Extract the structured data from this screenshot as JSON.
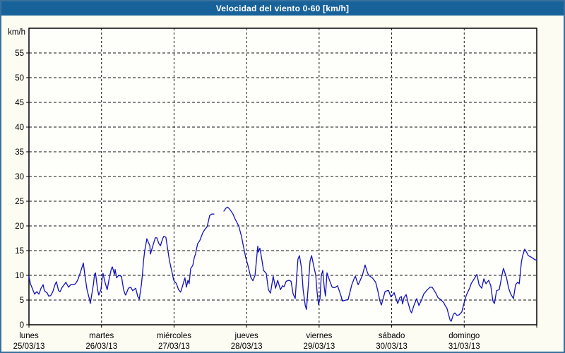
{
  "window": {
    "title": "Velocidad del viento 0-60 [km/h]"
  },
  "colors": {
    "titlebar_bg": "#18629a",
    "title_text": "#ffffff",
    "frame_border": "#39709d",
    "page_bg": "#fcfcf3",
    "plot_bg": "#fefefb",
    "grid": "#111111",
    "axis": "#000000",
    "line": "#1212bd"
  },
  "chart_data": {
    "type": "line",
    "title": "Velocidad del viento 0-60 [km/h]",
    "ylabel": "km/h",
    "xlabel": "",
    "ylim": [
      0,
      60
    ],
    "ytick_step": 5,
    "ytick_labels": [
      0,
      5,
      10,
      15,
      20,
      25,
      30,
      35,
      40,
      45,
      50,
      55
    ],
    "grid": "dashed",
    "legend_position": "none",
    "x_axis": {
      "hours_total": 168,
      "days": [
        {
          "name": "lunes",
          "date": "25/03/13"
        },
        {
          "name": "martes",
          "date": "26/03/13"
        },
        {
          "name": "miércoles",
          "date": "27/03/13"
        },
        {
          "name": "jueves",
          "date": "28/03/13"
        },
        {
          "name": "viernes",
          "date": "29/03/13"
        },
        {
          "name": "sábado",
          "date": "30/03/13"
        },
        {
          "name": "domingo",
          "date": "31/03/13"
        }
      ]
    },
    "series": [
      {
        "name": "Velocidad del viento",
        "unit": "km/h",
        "color": "#1212bd",
        "points": [
          [
            0,
            9.8
          ],
          [
            0.5,
            8.3
          ],
          [
            1.4,
            6.9
          ],
          [
            1.9,
            6.2
          ],
          [
            2.6,
            6.7
          ],
          [
            3.3,
            6.2
          ],
          [
            4,
            7.4
          ],
          [
            4.7,
            8.1
          ],
          [
            5.1,
            6.9
          ],
          [
            6.1,
            6.4
          ],
          [
            6.5,
            5.8
          ],
          [
            7.2,
            5.9
          ],
          [
            7.9,
            6.7
          ],
          [
            8.6,
            8.1
          ],
          [
            9.1,
            8.7
          ],
          [
            9.8,
            6.9
          ],
          [
            10.3,
            6.7
          ],
          [
            11,
            7.6
          ],
          [
            11.9,
            8.3
          ],
          [
            12.2,
            8.6
          ],
          [
            13.1,
            7.6
          ],
          [
            13.8,
            8.1
          ],
          [
            14.7,
            8.1
          ],
          [
            15.4,
            8.3
          ],
          [
            16.1,
            9
          ],
          [
            16.8,
            10.2
          ],
          [
            17.8,
            12.1
          ],
          [
            18,
            12.5
          ],
          [
            18.5,
            10
          ],
          [
            19.2,
            7.1
          ],
          [
            20.1,
            5
          ],
          [
            20.3,
            4.3
          ],
          [
            21.3,
            8.1
          ],
          [
            21.7,
            10.2
          ],
          [
            22,
            10.5
          ],
          [
            22.7,
            7.1
          ],
          [
            23.1,
            6
          ],
          [
            23.8,
            7.1
          ],
          [
            24.3,
            9.8
          ],
          [
            24.5,
            10.4
          ],
          [
            25,
            9
          ],
          [
            25.5,
            7.9
          ],
          [
            25.9,
            7.1
          ],
          [
            26.6,
            9.5
          ],
          [
            27.3,
            11.4
          ],
          [
            27.6,
            11.7
          ],
          [
            28.3,
            10.2
          ],
          [
            28.5,
            11.2
          ],
          [
            29,
            9.5
          ],
          [
            29.7,
            10
          ],
          [
            30.6,
            9.8
          ],
          [
            31.3,
            7.1
          ],
          [
            31.8,
            6.2
          ],
          [
            32,
            6
          ],
          [
            32.9,
            7.4
          ],
          [
            33.7,
            7.6
          ],
          [
            34.3,
            6.9
          ],
          [
            35.3,
            7.4
          ],
          [
            36,
            5.7
          ],
          [
            36.5,
            5.2
          ],
          [
            37.2,
            8.1
          ],
          [
            37.6,
            10.5
          ],
          [
            37.9,
            12.9
          ],
          [
            38.3,
            15
          ],
          [
            38.8,
            16.7
          ],
          [
            39,
            17.4
          ],
          [
            40,
            16
          ],
          [
            40.2,
            14.3
          ],
          [
            41.1,
            16.2
          ],
          [
            41.8,
            17.6
          ],
          [
            42.3,
            17.6
          ],
          [
            43,
            16.4
          ],
          [
            43.5,
            16
          ],
          [
            44.2,
            17.4
          ],
          [
            44.6,
            17.9
          ],
          [
            45.3,
            17.7
          ],
          [
            45.8,
            15.7
          ],
          [
            46.5,
            12.9
          ],
          [
            47.2,
            11
          ],
          [
            47.9,
            9
          ],
          [
            48.8,
            8.3
          ],
          [
            49.5,
            7.1
          ],
          [
            50.2,
            6.6
          ],
          [
            50.9,
            8
          ],
          [
            51.6,
            9.5
          ],
          [
            52.1,
            7.6
          ],
          [
            52.6,
            9
          ],
          [
            53,
            8.3
          ],
          [
            53.5,
            11.4
          ],
          [
            54.2,
            12
          ],
          [
            54.7,
            13.6
          ],
          [
            55.1,
            14.3
          ],
          [
            55.8,
            16.4
          ],
          [
            56.5,
            17
          ],
          [
            57.5,
            18.6
          ],
          [
            58.2,
            19.3
          ],
          [
            58.9,
            19.8
          ],
          [
            59.4,
            21
          ],
          [
            59.8,
            22.1
          ],
          [
            60.5,
            22.4
          ],
          [
            61.2,
            22.4
          ],
          [
            62.9,
            null
          ],
          [
            64.5,
            23
          ],
          [
            65.2,
            23.6
          ],
          [
            65.7,
            23.8
          ],
          [
            66.4,
            23.4
          ],
          [
            67.5,
            22.4
          ],
          [
            68.2,
            21.4
          ],
          [
            69.4,
            20
          ],
          [
            70.3,
            17.9
          ],
          [
            71,
            15.7
          ],
          [
            71.7,
            13.6
          ],
          [
            72.4,
            12.1
          ],
          [
            73.4,
            9.6
          ],
          [
            74.1,
            8.9
          ],
          [
            74.8,
            10
          ],
          [
            75.7,
            15.9
          ],
          [
            75.9,
            14.7
          ],
          [
            76.4,
            15.5
          ],
          [
            77.1,
            13
          ],
          [
            77.6,
            11
          ],
          [
            78.5,
            10.4
          ],
          [
            79.2,
            7.1
          ],
          [
            79.9,
            6.4
          ],
          [
            80.8,
            9.8
          ],
          [
            81.6,
            7.4
          ],
          [
            82.3,
            9
          ],
          [
            83.2,
            7.1
          ],
          [
            83.9,
            7.9
          ],
          [
            84.4,
            7.7
          ],
          [
            85.1,
            8.8
          ],
          [
            86,
            9
          ],
          [
            86.7,
            8.8
          ],
          [
            87.4,
            6.2
          ],
          [
            88.1,
            5.3
          ],
          [
            88.6,
            10
          ],
          [
            89,
            13.3
          ],
          [
            89.5,
            14
          ],
          [
            90.2,
            11.4
          ],
          [
            90.7,
            7.1
          ],
          [
            91.4,
            3.9
          ],
          [
            91.8,
            3.1
          ],
          [
            92.5,
            8.6
          ],
          [
            93,
            12.9
          ],
          [
            93.5,
            14
          ],
          [
            94.2,
            11.9
          ],
          [
            94.9,
            10
          ],
          [
            95.3,
            6.7
          ],
          [
            95.8,
            4.1
          ],
          [
            96.3,
            5.3
          ],
          [
            96.7,
            10
          ],
          [
            97.2,
            11
          ],
          [
            97.7,
            7.6
          ],
          [
            98.1,
            5.8
          ],
          [
            98.6,
            10.5
          ],
          [
            99.5,
            8.9
          ],
          [
            100.3,
            7.6
          ],
          [
            101.2,
            7.5
          ],
          [
            102.1,
            7.9
          ],
          [
            103.3,
            5.7
          ],
          [
            103.7,
            4.8
          ],
          [
            104.9,
            5
          ],
          [
            105.6,
            5.1
          ],
          [
            106.8,
            8.1
          ],
          [
            107.7,
            9.5
          ],
          [
            108,
            9.8
          ],
          [
            108.9,
            8.1
          ],
          [
            109.6,
            9
          ],
          [
            110.3,
            10
          ],
          [
            111.2,
            12.1
          ],
          [
            111.9,
            10.7
          ],
          [
            112.4,
            10
          ],
          [
            113.6,
            9.5
          ],
          [
            114.7,
            8.6
          ],
          [
            115.4,
            6.9
          ],
          [
            116.1,
            4.8
          ],
          [
            116.6,
            4
          ],
          [
            117.8,
            6.7
          ],
          [
            118.5,
            6.9
          ],
          [
            119,
            6.9
          ],
          [
            119.7,
            5.7
          ],
          [
            120.3,
            6
          ],
          [
            120.8,
            6.5
          ],
          [
            121.5,
            5.2
          ],
          [
            122,
            4.3
          ],
          [
            122.7,
            5.5
          ],
          [
            123.2,
            5.7
          ],
          [
            123.6,
            4.2
          ],
          [
            124.1,
            5.5
          ],
          [
            124.8,
            6.1
          ],
          [
            125.5,
            4.3
          ],
          [
            126.2,
            2.8
          ],
          [
            126.6,
            2.4
          ],
          [
            127.3,
            3.8
          ],
          [
            128.3,
            5.3
          ],
          [
            129,
            3.9
          ],
          [
            129.9,
            5
          ],
          [
            130.6,
            6.2
          ],
          [
            131.8,
            7.1
          ],
          [
            132.7,
            7.6
          ],
          [
            133.4,
            7.6
          ],
          [
            134.6,
            6.4
          ],
          [
            135.3,
            5.5
          ],
          [
            136.2,
            5.1
          ],
          [
            137.2,
            4.5
          ],
          [
            137.6,
            4
          ],
          [
            138.3,
            3.3
          ],
          [
            139.3,
            1
          ],
          [
            139.7,
            0.7
          ],
          [
            140.4,
            2.1
          ],
          [
            140.9,
            2.4
          ],
          [
            141.6,
            1.9
          ],
          [
            142.3,
            2
          ],
          [
            143.2,
            2.6
          ],
          [
            143.9,
            4.3
          ],
          [
            144.7,
            6
          ],
          [
            145.4,
            6.9
          ],
          [
            145.8,
            7.4
          ],
          [
            146.3,
            8.3
          ],
          [
            147,
            9
          ],
          [
            147.5,
            9.5
          ],
          [
            148.2,
            10.2
          ],
          [
            148.9,
            8.1
          ],
          [
            149.8,
            7.4
          ],
          [
            150.5,
            9.3
          ],
          [
            151.2,
            8.3
          ],
          [
            152.1,
            9
          ],
          [
            152.8,
            7.9
          ],
          [
            153.5,
            4.8
          ],
          [
            154,
            4.3
          ],
          [
            154.7,
            6.9
          ],
          [
            155.6,
            7.1
          ],
          [
            156.8,
            11
          ],
          [
            157,
            11.4
          ],
          [
            158,
            9.5
          ],
          [
            158.7,
            7.4
          ],
          [
            159.4,
            6.2
          ],
          [
            160.3,
            5.3
          ],
          [
            161,
            8.1
          ],
          [
            161.7,
            8.6
          ],
          [
            162.2,
            8.3
          ],
          [
            162.9,
            12.6
          ],
          [
            163.3,
            13.9
          ],
          [
            164,
            15.3
          ],
          [
            164.7,
            14.6
          ],
          [
            165.2,
            14
          ],
          [
            166.4,
            13.6
          ],
          [
            167.5,
            13.1
          ],
          [
            168,
            13.2
          ]
        ]
      }
    ]
  }
}
